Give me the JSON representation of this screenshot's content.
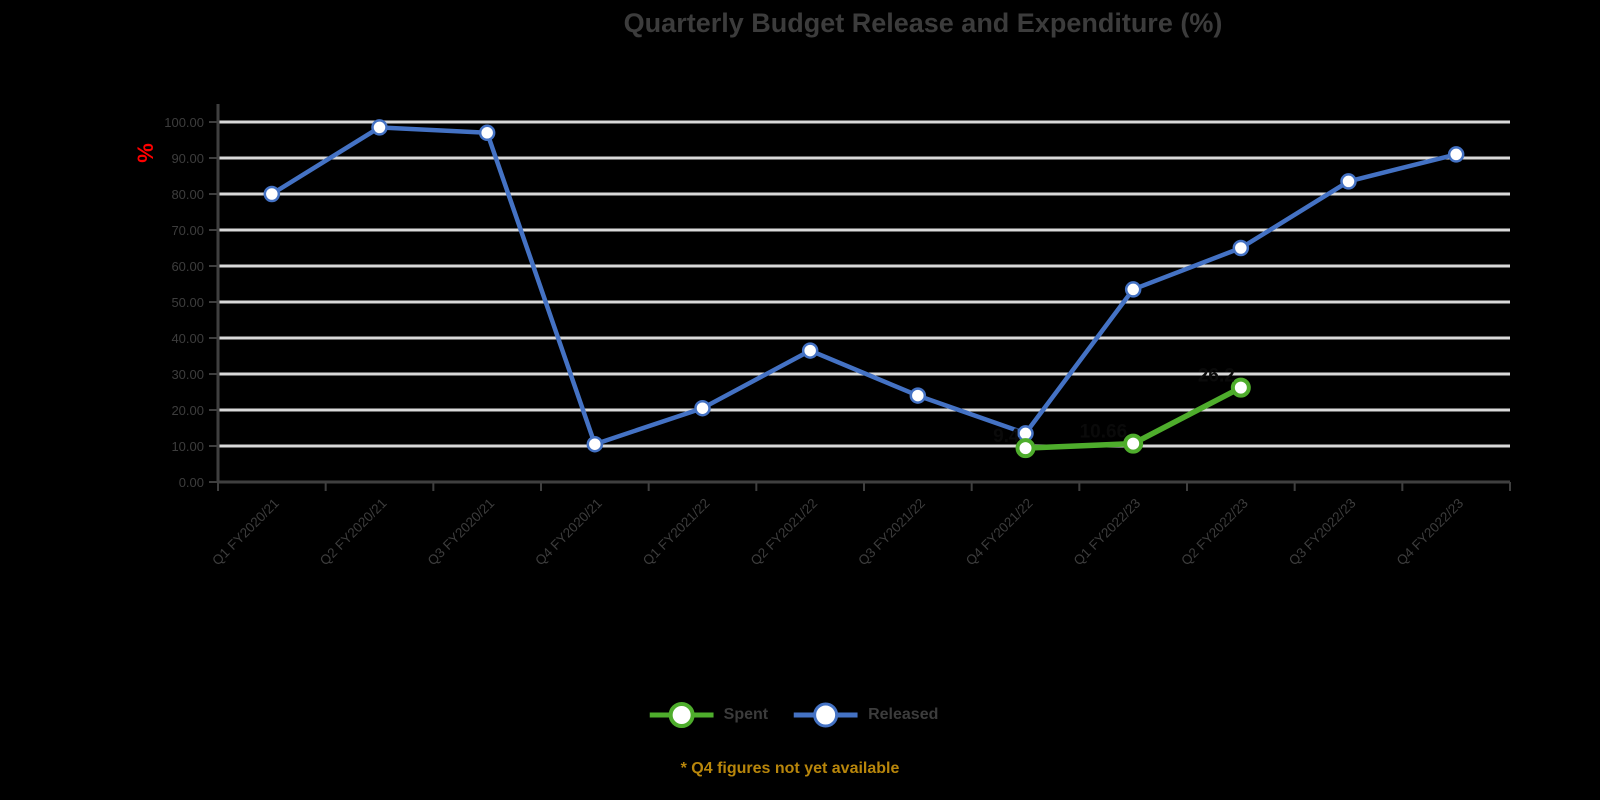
{
  "title": "Quarterly Budget Release and Expenditure (%)",
  "y_axis": {
    "unit_label": "%",
    "unit_color": "#ff0000"
  },
  "legend": {
    "items": [
      {
        "label": "Spent",
        "color": "#4ead2c"
      },
      {
        "label": "Released",
        "color": "#4472c4"
      }
    ]
  },
  "footnote": {
    "text": "* Q4 figures not yet available",
    "color": "#b8860b"
  },
  "chart_data": {
    "type": "line",
    "title": "Quarterly Budget Release and Expenditure (%)",
    "xlabel": "",
    "ylabel": "%",
    "ylim": [
      0,
      100
    ],
    "grid": true,
    "legend_position": "bottom",
    "y_ticks": [
      "0.00",
      "10.00",
      "20.00",
      "30.00",
      "40.00",
      "50.00",
      "60.00",
      "70.00",
      "80.00",
      "90.00",
      "100.00"
    ],
    "categories": [
      "Q1 FY2020/21",
      "Q2 FY2020/21",
      "Q3 FY2020/21",
      "Q4 FY2020/21",
      "Q1 FY2021/22",
      "Q2 FY2021/22",
      "Q3 FY2021/22",
      "Q4 FY2021/22",
      "Q1 FY2022/23",
      "Q2 FY2022/23",
      "Q3 FY2022/23",
      "Q4 FY2022/23"
    ],
    "series": [
      {
        "name": "Released",
        "color": "#4472c4",
        "start_index": 0,
        "values": [
          80,
          98.5,
          97,
          10.5,
          20.5,
          36.5,
          24,
          13.5,
          53.5,
          65,
          83.5,
          91
        ]
      },
      {
        "name": "Spent",
        "color": "#4ead2c",
        "start_index": 7,
        "values": [
          9.4,
          10.66,
          26.2
        ],
        "data_labels": [
          "9.4",
          "10.66",
          "26.2"
        ],
        "data_label_color": "#0a0a0a"
      }
    ]
  }
}
